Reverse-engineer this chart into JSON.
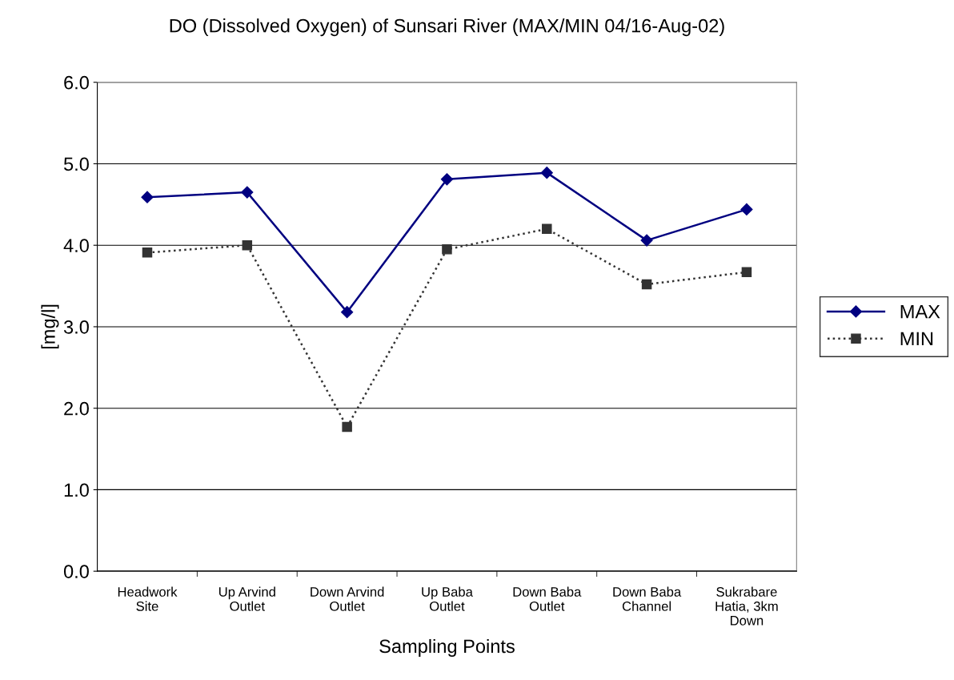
{
  "chart_data": {
    "type": "line",
    "title": "DO (Dissolved Oxygen) of Sunsari River (MAX/MIN 04/16-Aug-02)",
    "xlabel": "Sampling Points",
    "ylabel": "[mg/l]",
    "categories": [
      "Headwork\nSite",
      "Up Arvind\nOutlet",
      "Down Arvind\nOutlet",
      "Up Baba\nOutlet",
      "Down Baba\nOutlet",
      "Down Baba\nChannel",
      "Sukrabare\nHatia, 3km\nDown"
    ],
    "series": [
      {
        "name": "MAX",
        "color": "#000080",
        "marker": "diamond",
        "line_style": "solid",
        "values": [
          4.59,
          4.65,
          3.18,
          4.81,
          4.89,
          4.06,
          4.44
        ]
      },
      {
        "name": "MIN",
        "color": "#333333",
        "marker": "square",
        "line_style": "dotted",
        "values": [
          3.91,
          4.0,
          1.77,
          3.95,
          4.2,
          3.52,
          3.67
        ]
      }
    ],
    "ylim": [
      0,
      6
    ],
    "yticks": [
      {
        "value": 0,
        "label": "0.0"
      },
      {
        "value": 1,
        "label": "1.0"
      },
      {
        "value": 2,
        "label": "2.0"
      },
      {
        "value": 3,
        "label": "3.0"
      },
      {
        "value": 4,
        "label": "4.0"
      },
      {
        "value": 5,
        "label": "5.0"
      },
      {
        "value": 6,
        "label": "6.0"
      }
    ],
    "grid": "y",
    "legend": "right"
  }
}
